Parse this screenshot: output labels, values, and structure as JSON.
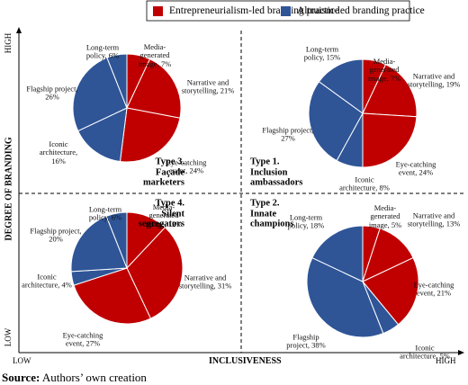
{
  "chart_data": [
    {
      "type": "pie",
      "title": "Type 3. Façade marketers",
      "categories": [
        "Media-generated image",
        "Narrative and storytelling",
        "Eye-catching event",
        "Iconic architecture",
        "Flagship project",
        "Long-term policy"
      ],
      "values": [
        7,
        21,
        24,
        16,
        26,
        6
      ],
      "value_labels": [
        "Media-generated image, 7%",
        "Narrative and storytelling, 21%",
        "Eye-catching event, 24%",
        "Iconic architecture, 16%",
        "Flagship project, 26%",
        "Long-term policy, 6%"
      ],
      "colors": [
        "#c00000",
        "#c00000",
        "#c00000",
        "#2f5597",
        "#2f5597",
        "#2f5597"
      ]
    },
    {
      "type": "pie",
      "title": "Type 1. Inclusion ambassadors",
      "categories": [
        "Media-generated image",
        "Narrative and storytelling",
        "Eye-catching event",
        "Iconic architecture",
        "Flagship project",
        "Long-term policy"
      ],
      "values": [
        7,
        19,
        24,
        8,
        27,
        15
      ],
      "value_labels": [
        "Media-generated image, 7%",
        "Narrative and storytelling, 19%",
        "Eye-catching event, 24%",
        "Iconic architecture, 8%",
        "Flagship project, 27%",
        "Long-term policy, 15%"
      ],
      "colors": [
        "#c00000",
        "#c00000",
        "#c00000",
        "#2f5597",
        "#2f5597",
        "#2f5597"
      ]
    },
    {
      "type": "pie",
      "title": "Type 4. Silent segregators",
      "categories": [
        "Media-generated image",
        "Narrative and storytelling",
        "Eye-catching event",
        "Iconic architecture",
        "Flagship project",
        "Long-term policy"
      ],
      "values": [
        12,
        31,
        27,
        4,
        20,
        6
      ],
      "value_labels": [
        "Media-generated image, 12%",
        "Narrative and storytelling, 31%",
        "Eye-catching event, 27%",
        "Iconic architecture, 4%",
        "Flagship project, 20%",
        "Long-term policy, 6%"
      ],
      "colors": [
        "#c00000",
        "#c00000",
        "#c00000",
        "#2f5597",
        "#2f5597",
        "#2f5597"
      ]
    },
    {
      "type": "pie",
      "title": "Type 2. Innate champions",
      "categories": [
        "Media-generated image",
        "Narrative and storytelling",
        "Eye-catching event",
        "Iconic architecture",
        "Flagship project",
        "Long-term policy"
      ],
      "values": [
        5,
        13,
        21,
        5,
        38,
        18
      ],
      "value_labels": [
        "Media-generated image, 5%",
        "Narrative and storytelling, 13%",
        "Eye-catching event, 21%",
        "Iconic architecture, 5%",
        "Flagship project, 38%",
        "Long-term policy, 18%"
      ],
      "colors": [
        "#c00000",
        "#c00000",
        "#c00000",
        "#2f5597",
        "#2f5597",
        "#2f5597"
      ]
    }
  ],
  "legend": [
    {
      "name": "Entrepreneurialism-led branding practice",
      "color": "#c00000"
    },
    {
      "name": "Altruism-led branding practice",
      "color": "#2f5597"
    }
  ],
  "axes": {
    "y_label": "DEGREE OF BRANDING",
    "y_high": "HIGH",
    "y_low": "LOW",
    "x_label": "INCLUSIVENESS",
    "x_low": "LOW",
    "x_high": "HIGH"
  },
  "source": {
    "label": "Source:",
    "text": "Authors’ own creation"
  }
}
